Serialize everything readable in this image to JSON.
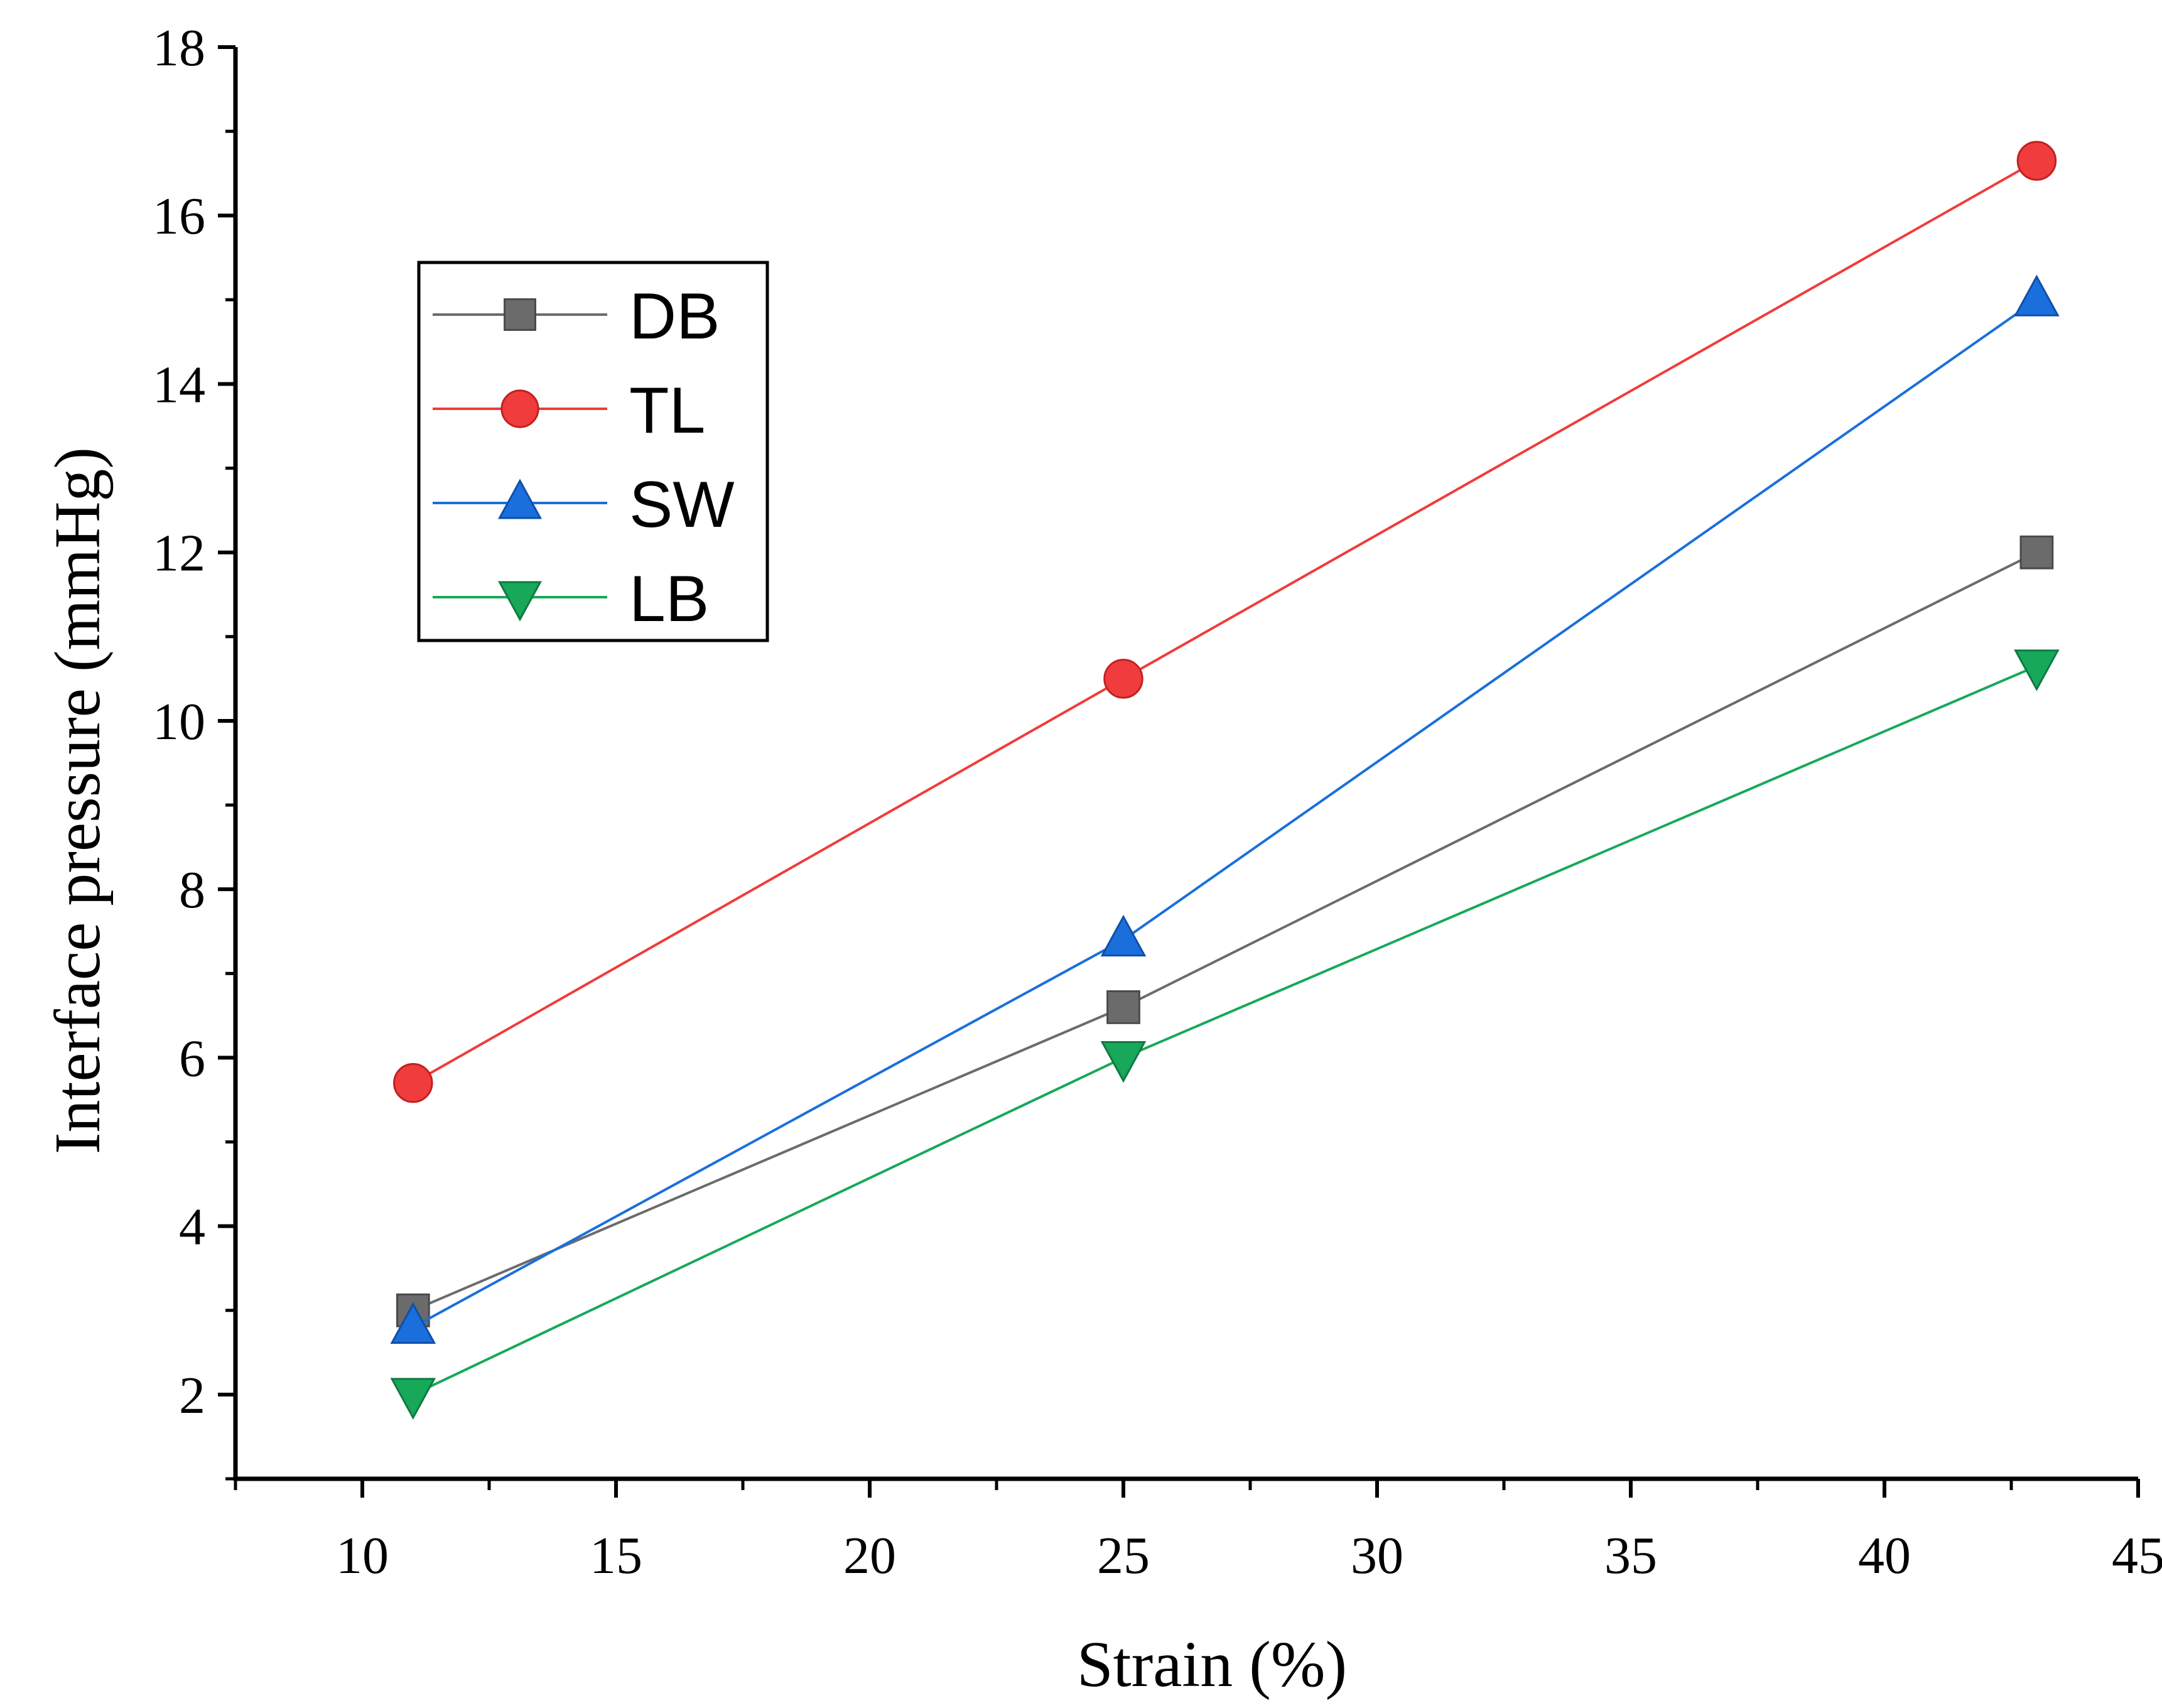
{
  "chart_data": {
    "type": "line",
    "title": "",
    "xlabel": "Strain (%)",
    "ylabel": "Interface  pressure (mmHg)",
    "xlim": [
      7.5,
      45
    ],
    "ylim": [
      1,
      18
    ],
    "xticks": [
      10,
      15,
      20,
      25,
      30,
      35,
      40,
      45
    ],
    "yticks": [
      2,
      4,
      6,
      8,
      10,
      12,
      14,
      16,
      18
    ],
    "grid": false,
    "legend_position": "upper-left",
    "x": [
      11,
      25,
      43
    ],
    "series": [
      {
        "name": "DB",
        "marker": "square",
        "color": "#6b6b6b",
        "values": [
          3.0,
          6.6,
          12.0
        ]
      },
      {
        "name": "TL",
        "marker": "circle",
        "color": "#f03c3c",
        "values": [
          5.7,
          10.5,
          16.65
        ]
      },
      {
        "name": "SW",
        "marker": "triangle-up",
        "color": "#1a6fdc",
        "values": [
          2.8,
          7.4,
          15.0
        ]
      },
      {
        "name": "LB",
        "marker": "triangle-down",
        "color": "#17a85a",
        "values": [
          2.0,
          6.0,
          10.65
        ]
      }
    ]
  }
}
